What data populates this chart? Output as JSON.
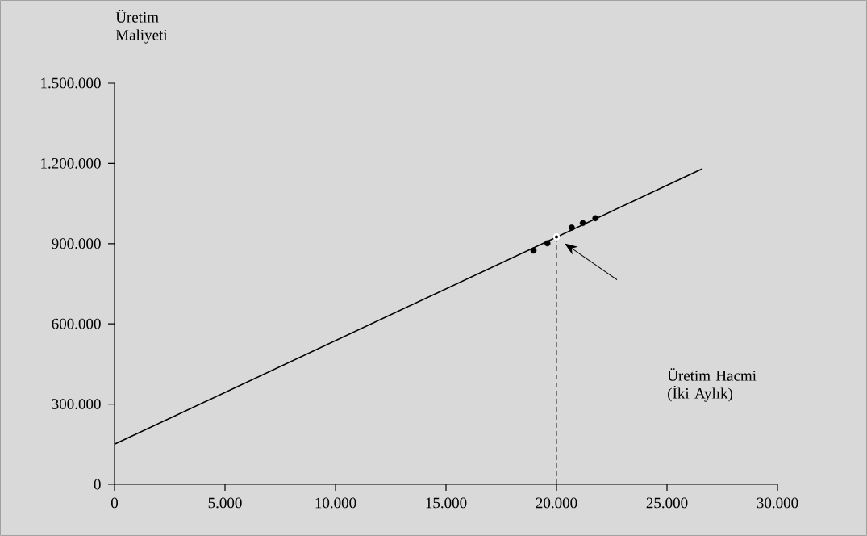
{
  "chart_data": {
    "type": "line",
    "xlabel": "Üretim Hacmi (İki Aylık)",
    "ylabel": "Üretim Maliyeti",
    "series": [
      {
        "color": "#000000",
        "x": [
          0,
          26600
        ],
        "values": [
          150000,
          1180000
        ],
        "marker": "none",
        "line_style": "solid"
      },
      {
        "type": "scatter",
        "color": "#000000",
        "x": [
          18960,
          19590,
          20690,
          21190,
          21760
        ],
        "values": [
          874000,
          901000,
          960000,
          977000,
          995000
        ],
        "marker": "circle"
      },
      {
        "type": "scatter",
        "color": "#ffffff",
        "x": [
          20000
        ],
        "values": [
          925000
        ],
        "marker": "circle"
      }
    ],
    "ref_lines": [
      {
        "axis": "x",
        "value": 20000,
        "line_style": "dashed",
        "color": "#000000"
      },
      {
        "axis": "y",
        "value": 925000,
        "line_style": "dashed",
        "color": "#000000"
      }
    ],
    "xlim": [
      0,
      30000
    ],
    "ylim": [
      0,
      1500000
    ],
    "xticks": [
      0,
      {
        "value": 5000,
        "label": "5.000"
      },
      {
        "value": 10000,
        "label": "10.000"
      },
      {
        "value": 15000,
        "label": "15.000"
      },
      {
        "value": 20000,
        "label": "20.000"
      },
      {
        "value": 25000,
        "label": "25.000"
      },
      {
        "value": 30000,
        "label": "30.000"
      }
    ],
    "yticks": [
      0,
      {
        "value": 300000,
        "label": "300.000"
      },
      {
        "value": 600000,
        "label": "600.000"
      },
      {
        "value": 900000,
        "label": "900.000"
      },
      {
        "value": 1200000,
        "label": "1.200.000"
      },
      {
        "value": 1500000,
        "label": "1.500.000"
      }
    ],
    "grid": false
  }
}
